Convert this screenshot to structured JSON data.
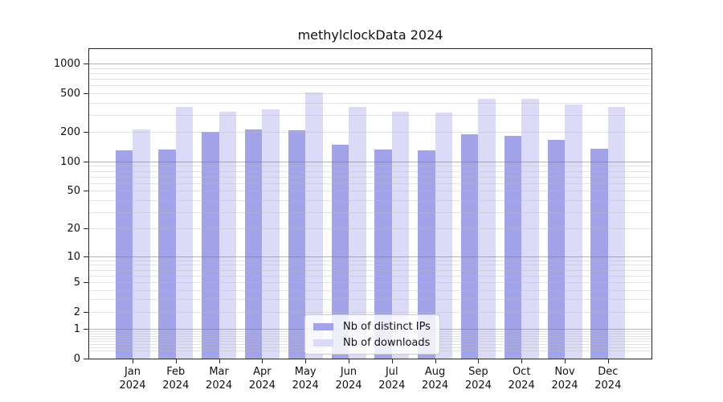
{
  "chart_data": {
    "type": "bar",
    "title": "methylclockData 2024",
    "categories": [
      "Jan",
      "Feb",
      "Mar",
      "Apr",
      "May",
      "Jun",
      "Jul",
      "Aug",
      "Sep",
      "Oct",
      "Nov",
      "Dec"
    ],
    "year_label": "2024",
    "series": [
      {
        "name": "Nb of distinct IPs",
        "color": "#a3a3ea",
        "values": [
          130,
          133,
          202,
          212,
          210,
          150,
          132,
          129,
          191,
          182,
          165,
          134
        ]
      },
      {
        "name": "Nb of downloads",
        "color": "#dbdbf7",
        "values": [
          213,
          362,
          321,
          340,
          505,
          362,
          325,
          315,
          437,
          437,
          380,
          362
        ]
      }
    ],
    "y_ticks": [
      0,
      1,
      2,
      5,
      10,
      20,
      50,
      100,
      200,
      500,
      1000
    ],
    "y_scale": "log10(1+v)",
    "ylim": [
      0,
      1430
    ],
    "grid": "on",
    "legend_position": "bottom-center",
    "colors": {
      "spine": "#262626",
      "grid_minor": "#bdbdbd",
      "grid_major": "#8a8a8a",
      "text": "#111111",
      "background": "#ffffff"
    }
  }
}
